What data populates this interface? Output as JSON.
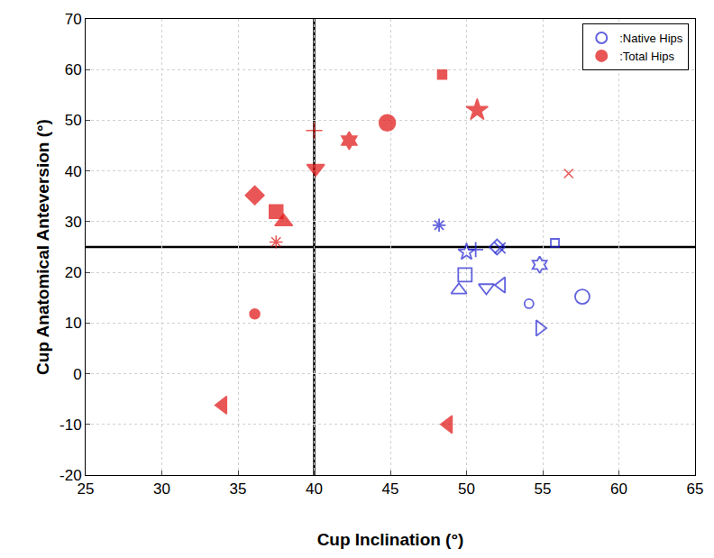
{
  "chart_data": {
    "type": "scatter",
    "x_label": "Cup Inclination (°)",
    "y_label": "Cup Anatomical Anteversion (°)",
    "xlim": [
      25,
      65
    ],
    "xticks": [
      25,
      30,
      35,
      40,
      45,
      50,
      55,
      60,
      65
    ],
    "ylim": [
      -20,
      70
    ],
    "yticks": [
      -20,
      -10,
      0,
      10,
      20,
      30,
      40,
      50,
      60,
      70
    ],
    "grid": true,
    "legend": "top right",
    "reference_x": 40,
    "reference_y": 25,
    "series": [
      {
        "name": ":Native Hips",
        "color": "#1f1fd0",
        "marker": "open",
        "x": [
          57.6,
          48.2,
          50.6,
          50.0,
          52.0,
          52.2,
          55.8,
          54.8,
          49.9,
          49.5,
          51.3,
          52.3,
          54.1,
          54.8
        ],
        "values": [
          15.2,
          29.3,
          24.5,
          24.0,
          25.0,
          24.8,
          25.8,
          21.5,
          19.5,
          16.5,
          17.0,
          17.5,
          13.8,
          9.0
        ]
      },
      {
        "name": ":Total Hips",
        "color": "#e01010",
        "marker": "filled",
        "x": [
          44.8,
          48.4,
          50.7,
          40.0,
          42.3,
          56.7,
          40.1,
          36.1,
          37.5,
          38.0,
          37.5,
          36.1,
          34.0,
          48.8
        ],
        "values": [
          49.5,
          59.0,
          52.0,
          48.0,
          46.0,
          39.5,
          40.5,
          35.2,
          32.0,
          30.0,
          26.0,
          11.8,
          -6.2,
          -10.0
        ]
      }
    ]
  }
}
